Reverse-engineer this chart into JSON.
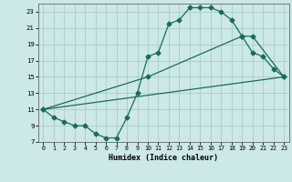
{
  "xlabel": "Humidex (Indice chaleur)",
  "bg_color": "#cce8e8",
  "line_color": "#1a6b5a",
  "grid_color": "#aacccc",
  "xlim": [
    -0.5,
    23.5
  ],
  "ylim": [
    7,
    24
  ],
  "xticks": [
    0,
    1,
    2,
    3,
    4,
    5,
    6,
    7,
    8,
    9,
    10,
    11,
    12,
    13,
    14,
    15,
    16,
    17,
    18,
    19,
    20,
    21,
    22,
    23
  ],
  "yticks": [
    7,
    9,
    11,
    13,
    15,
    17,
    19,
    21,
    23
  ],
  "line1_x": [
    0,
    1,
    2,
    3,
    4,
    5,
    6,
    7,
    8,
    9,
    10,
    11,
    12,
    13,
    14,
    15,
    16,
    17,
    18,
    19,
    20,
    21,
    22,
    23
  ],
  "line1_y": [
    11,
    10,
    9.5,
    9,
    9,
    8,
    7.5,
    7.5,
    10,
    13,
    17.5,
    18,
    21.5,
    22,
    23.5,
    23.5,
    23.5,
    23,
    22,
    20,
    18,
    17.5,
    16,
    15
  ],
  "line2_x": [
    0,
    23
  ],
  "line2_y": [
    11,
    15
  ],
  "line3_x": [
    0,
    10,
    19,
    20,
    23
  ],
  "line3_y": [
    11,
    15,
    20,
    20,
    15
  ]
}
